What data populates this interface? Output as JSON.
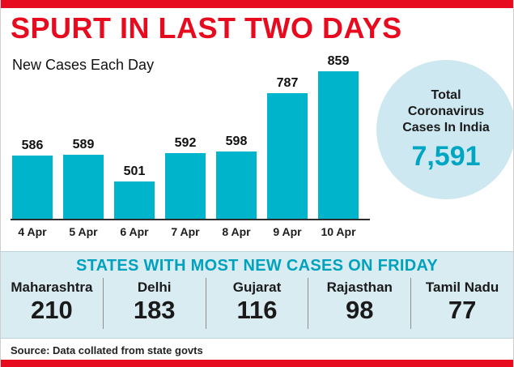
{
  "title": "SPURT IN LAST TWO DAYS",
  "chart_data": {
    "type": "bar",
    "title": "New Cases Each Day",
    "categories": [
      "4 Apr",
      "5 Apr",
      "6 Apr",
      "7 Apr",
      "8 Apr",
      "9 Apr",
      "10 Apr"
    ],
    "values": [
      586,
      589,
      501,
      592,
      598,
      787,
      859
    ],
    "xlabel": "",
    "ylabel": "",
    "ylim": [
      380,
      880
    ],
    "grid": false,
    "legend": "none",
    "bar_color": "#00b4cc"
  },
  "total_badge": {
    "label": "Total Coronavirus Cases In India",
    "value": "7,591"
  },
  "states_section": {
    "header": "STATES WITH MOST NEW CASES ON FRIDAY",
    "states": [
      {
        "name": "Maharashtra",
        "value": "210"
      },
      {
        "name": "Delhi",
        "value": "183"
      },
      {
        "name": "Gujarat",
        "value": "116"
      },
      {
        "name": "Rajasthan",
        "value": "98"
      },
      {
        "name": "Tamil Nadu",
        "value": "77"
      }
    ]
  },
  "source": "Source: Data collated from state govts",
  "colors": {
    "accent_red": "#e60b1e",
    "bar_cyan": "#00b4cc",
    "circle_bg": "#cde8f1",
    "band_bg": "#d8ecf2",
    "header_teal": "#00a2bd",
    "value_cyan": "#00a5c2"
  }
}
